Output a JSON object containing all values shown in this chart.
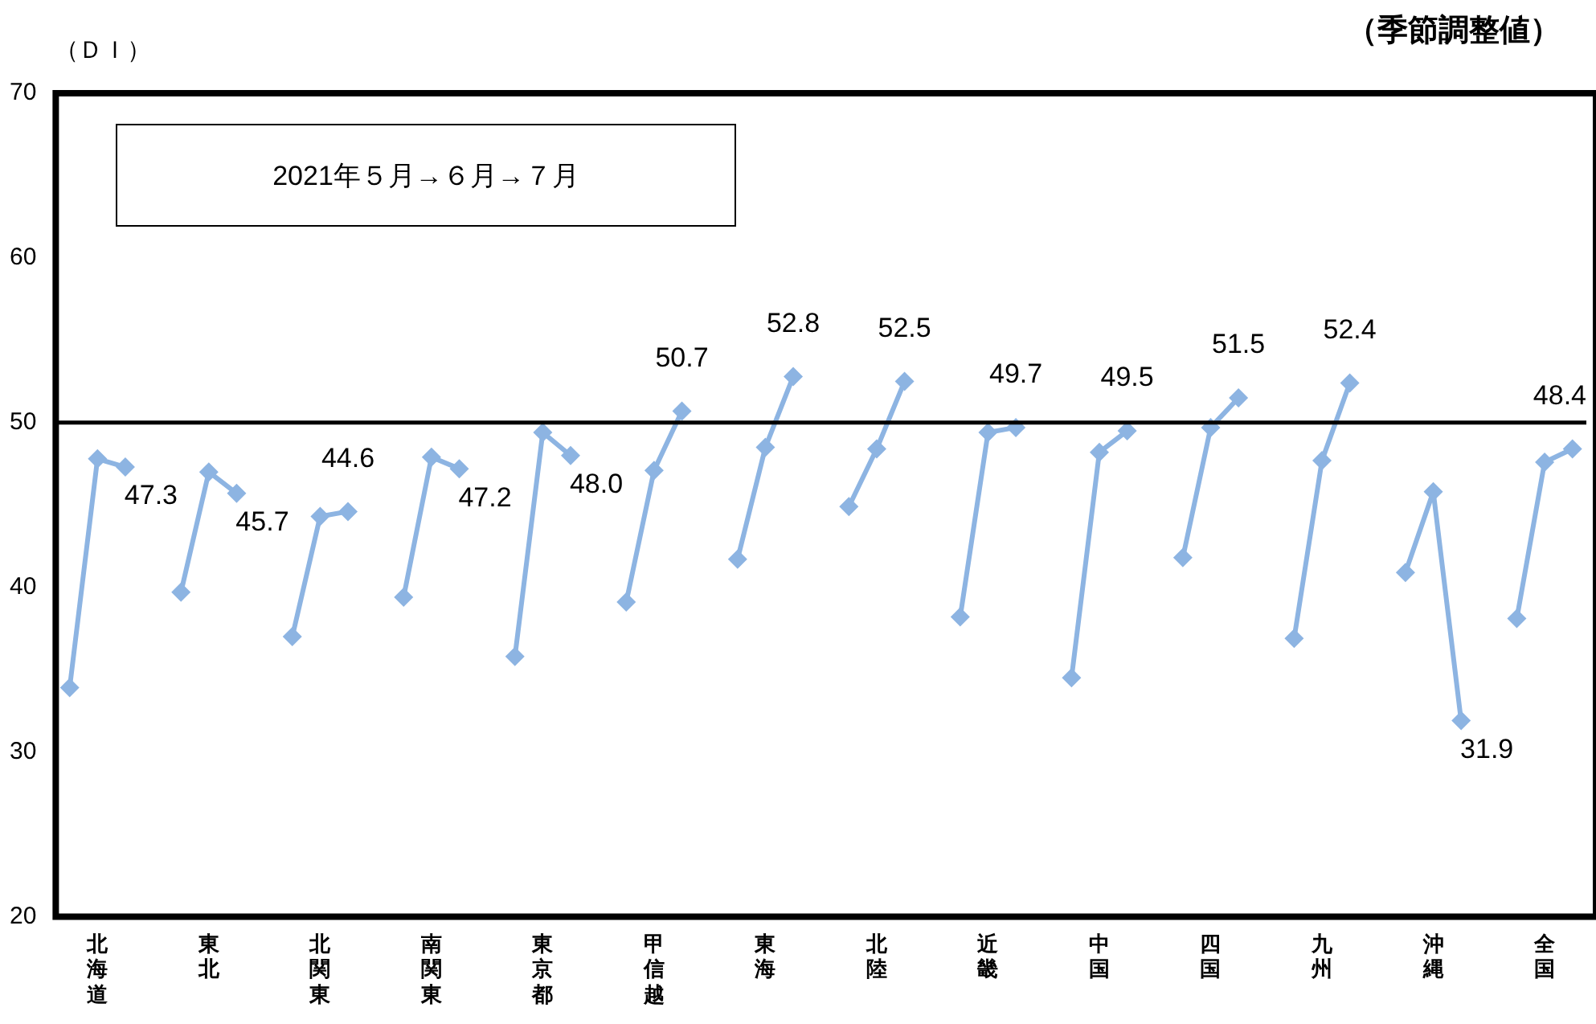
{
  "chart_data": {
    "type": "line",
    "subtitle": "（季節調整値）",
    "ylabel": "（ＤＩ）",
    "annotations": [
      "2021年５月→６月→７月"
    ],
    "categories": [
      null,
      "北海道",
      null,
      null,
      null,
      "東北",
      null,
      null,
      null,
      "北関東",
      null,
      null,
      null,
      "南関東",
      null,
      null,
      null,
      "東京都",
      null,
      null,
      null,
      "甲信越",
      null,
      null,
      null,
      "東海",
      null,
      null,
      null,
      "北陸",
      null,
      null,
      null,
      "近畿",
      null,
      null,
      null,
      "中国",
      null,
      null,
      null,
      "四国",
      null,
      null,
      null,
      "九州",
      null,
      null,
      null,
      "沖縄",
      null,
      null,
      null,
      "全国",
      null
    ],
    "series": [
      {
        "color": "#8db4e2",
        "values": [
          33.9,
          47.8,
          47.3,
          null,
          39.7,
          47.0,
          45.7,
          null,
          37.0,
          44.3,
          44.6,
          null,
          39.4,
          47.9,
          47.2,
          null,
          35.8,
          49.4,
          48.0,
          null,
          39.1,
          47.1,
          50.7,
          null,
          41.7,
          48.5,
          52.8,
          null,
          44.9,
          48.4,
          52.5,
          null,
          38.2,
          49.4,
          49.7,
          null,
          34.5,
          48.2,
          49.5,
          null,
          41.8,
          49.7,
          51.5,
          null,
          36.9,
          47.7,
          52.4,
          null,
          40.9,
          45.8,
          31.9,
          null,
          38.1,
          47.6,
          48.4
        ],
        "value_labels": [
          null,
          null,
          "47.3",
          null,
          null,
          null,
          "45.7",
          null,
          null,
          null,
          "44.6",
          null,
          null,
          null,
          "47.2",
          null,
          null,
          null,
          "48.0",
          null,
          null,
          null,
          "50.7",
          null,
          null,
          null,
          "52.8",
          null,
          null,
          null,
          "52.5",
          null,
          null,
          null,
          "49.7",
          null,
          null,
          null,
          "49.5",
          null,
          null,
          null,
          "51.5",
          null,
          null,
          null,
          "52.4",
          null,
          null,
          null,
          "31.9",
          null,
          null,
          null,
          "48.4"
        ]
      }
    ],
    "ylim": [
      20,
      70
    ],
    "yticks": [
      20,
      30,
      40,
      50,
      60,
      70
    ],
    "ref_lines": [
      {
        "axis": "y",
        "value": 50,
        "color": "#000000"
      }
    ],
    "grid": false,
    "legend": false,
    "marker": "diamond",
    "line_style": "solid"
  }
}
